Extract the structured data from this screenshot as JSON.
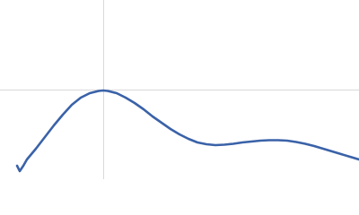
{
  "chart_data": {
    "type": "line",
    "x": [
      19,
      22,
      26,
      30,
      40,
      50,
      60,
      70,
      80,
      90,
      100,
      110,
      115,
      120,
      130,
      140,
      150,
      160,
      170,
      180,
      190,
      200,
      210,
      220,
      230,
      240,
      250,
      260,
      270,
      280,
      290,
      300,
      310,
      320,
      330,
      340,
      350,
      360,
      370,
      380,
      390,
      400
    ],
    "series": [
      {
        "color": "#3a62a8",
        "values": [
          15,
          9,
          15,
          22,
          34,
          47,
          60,
          72,
          83,
          91,
          96,
          98.5,
          99,
          98.5,
          96,
          91,
          85,
          78,
          70,
          63,
          56,
          50,
          45,
          41,
          39,
          38,
          38.5,
          39.5,
          41,
          42,
          43,
          43.5,
          43.5,
          43,
          41.5,
          39.5,
          37,
          34,
          31,
          28,
          25,
          22
        ]
      }
    ],
    "xlim": [
      0,
      400
    ],
    "ylim": [
      0,
      200
    ],
    "xticks": [
      115
    ],
    "yticks": [
      100
    ],
    "grid": true
  }
}
